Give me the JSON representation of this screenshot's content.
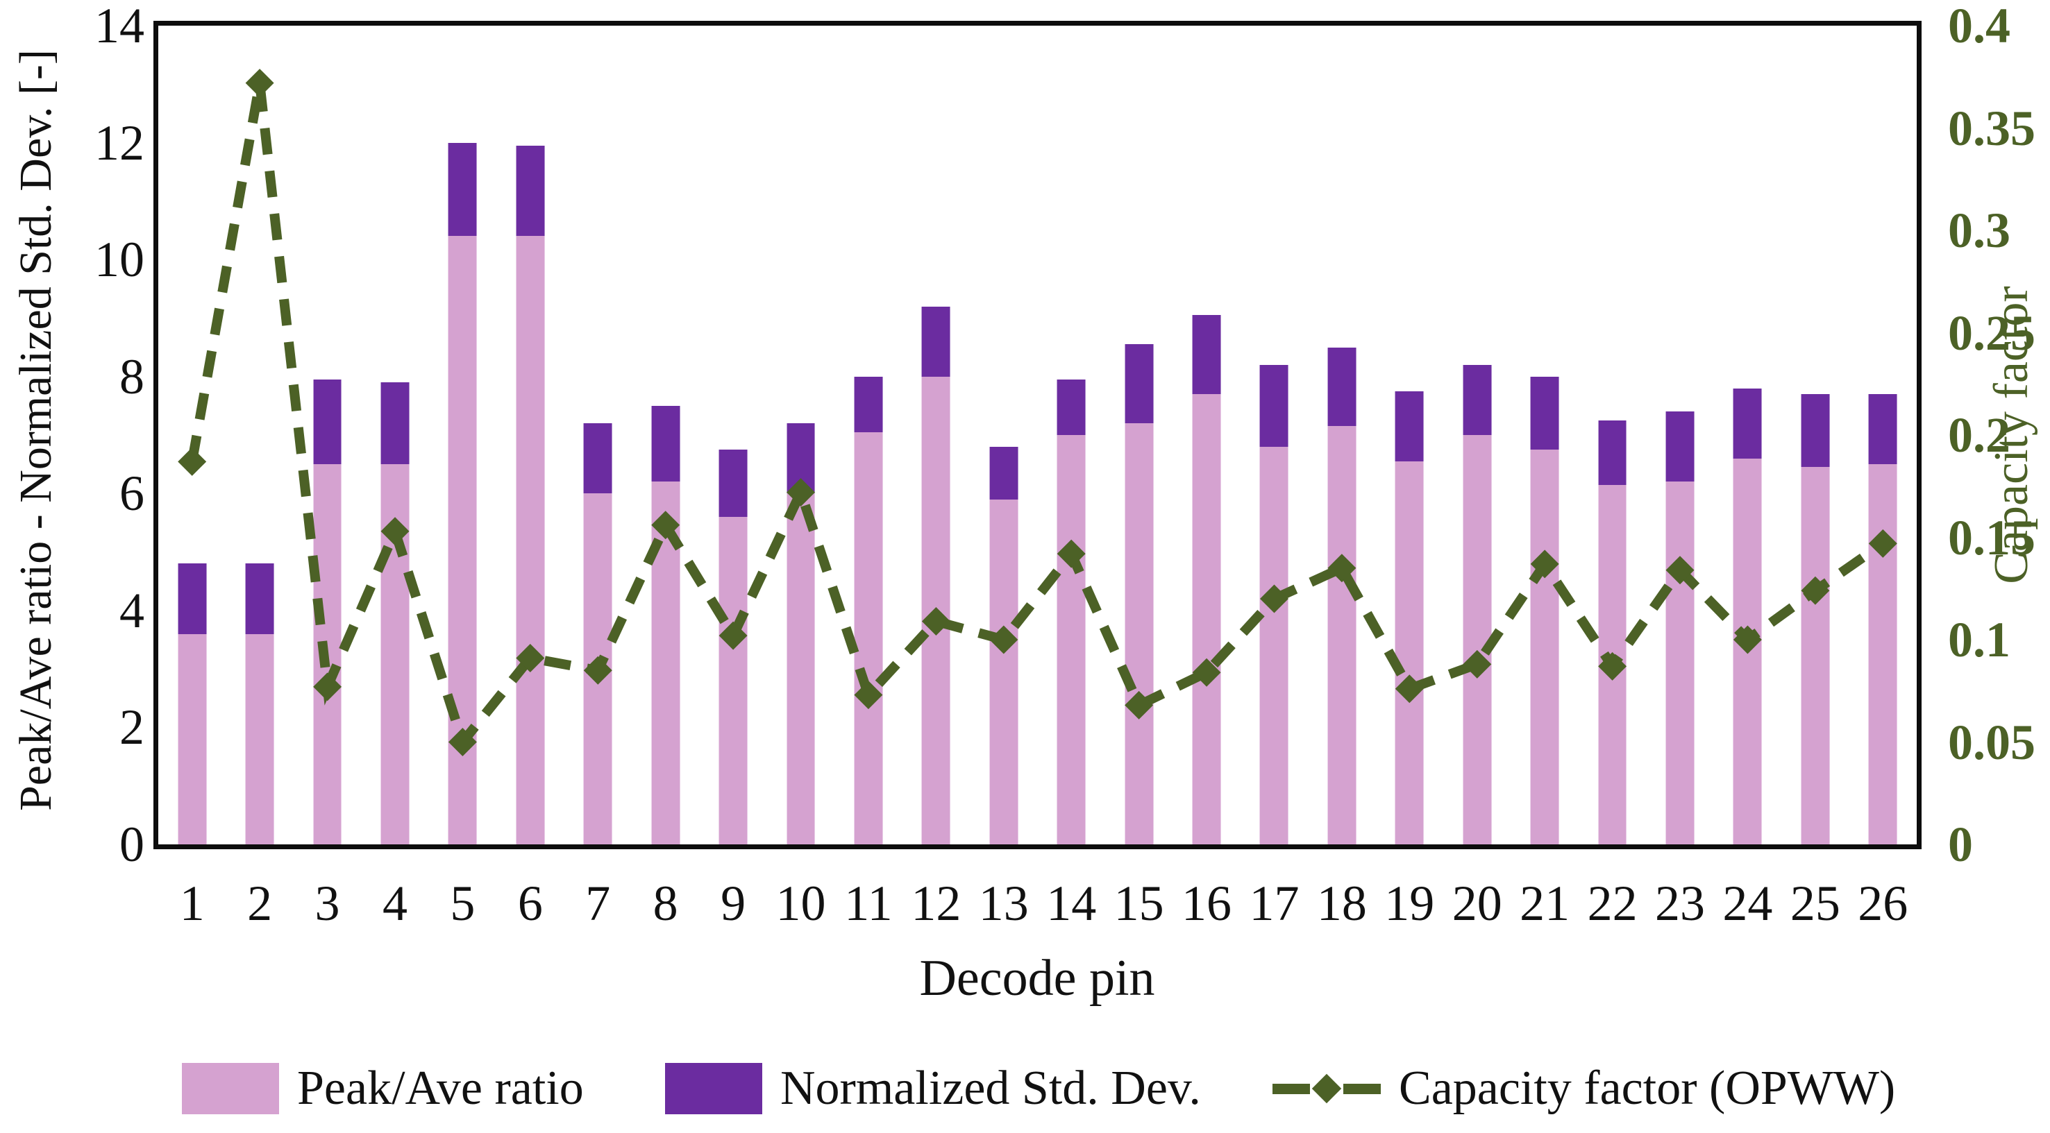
{
  "figure": {
    "background_color": "#ffffff",
    "plot_border_color": "#0d0d0d"
  },
  "colors": {
    "peak_ave_bar": "#D5A2D0",
    "normalized_std_bar": "#6B2CA0",
    "capacity_line": "#4C6126",
    "left_axis_text": "#111111",
    "right_axis_text": "#4C6126"
  },
  "chart_data": {
    "type": "combo-stacked-bar-line",
    "categories": [
      "1",
      "2",
      "3",
      "4",
      "5",
      "6",
      "7",
      "8",
      "9",
      "10",
      "11",
      "12",
      "13",
      "14",
      "15",
      "16",
      "17",
      "18",
      "19",
      "20",
      "21",
      "22",
      "23",
      "24",
      "25",
      "26"
    ],
    "series": [
      {
        "name": "Peak/Ave ratio",
        "type": "bar",
        "axis": "left",
        "values": [
          3.6,
          3.6,
          6.5,
          6.5,
          10.4,
          10.4,
          6.0,
          6.2,
          5.6,
          6.0,
          7.05,
          8.0,
          5.9,
          7.0,
          7.2,
          7.7,
          6.8,
          7.15,
          6.55,
          7.0,
          6.75,
          6.15,
          6.2,
          6.6,
          6.45,
          6.5
        ]
      },
      {
        "name": "Normalized Std. Dev.",
        "type": "bar",
        "axis": "left",
        "values": [
          1.2,
          1.2,
          1.45,
          1.4,
          1.6,
          1.55,
          1.2,
          1.3,
          1.15,
          1.2,
          0.95,
          1.2,
          0.9,
          0.95,
          1.35,
          1.35,
          1.4,
          1.35,
          1.2,
          1.2,
          1.25,
          1.1,
          1.2,
          1.2,
          1.25,
          1.2
        ]
      },
      {
        "name": "Capacity factor (OPWW)",
        "type": "line",
        "axis": "right",
        "line_style": "dashed",
        "marker": "diamond",
        "values": [
          0.187,
          0.372,
          0.077,
          0.153,
          0.05,
          0.091,
          0.085,
          0.156,
          0.102,
          0.172,
          0.073,
          0.109,
          0.1,
          0.142,
          0.068,
          0.084,
          0.12,
          0.135,
          0.076,
          0.088,
          0.137,
          0.087,
          0.134,
          0.1,
          0.124,
          0.147
        ]
      }
    ],
    "left_axis": {
      "label": "Peak/Ave ratio - Normalized Std. Dev. [-]",
      "range": [
        0,
        14
      ],
      "tick_labels": [
        "0",
        "2",
        "4",
        "6",
        "8",
        "10",
        "12",
        "14"
      ]
    },
    "right_axis": {
      "label": "Capacity factor",
      "range": [
        0,
        0.4
      ],
      "tick_labels": [
        "0",
        "0.05",
        "0.1",
        "0.15",
        "0.2",
        "0.25",
        "0.3",
        "0.35",
        "0.4"
      ]
    },
    "x_axis": {
      "label": "Decode pin"
    },
    "grid": "off",
    "legend_position": "bottom",
    "legend": [
      {
        "label": "Peak/Ave ratio",
        "swatch": "pink-rect"
      },
      {
        "label": "Normalized Std. Dev.",
        "swatch": "purple-rect"
      },
      {
        "label": "Capacity factor (OPWW)",
        "swatch": "green-dash-diamond"
      }
    ]
  }
}
